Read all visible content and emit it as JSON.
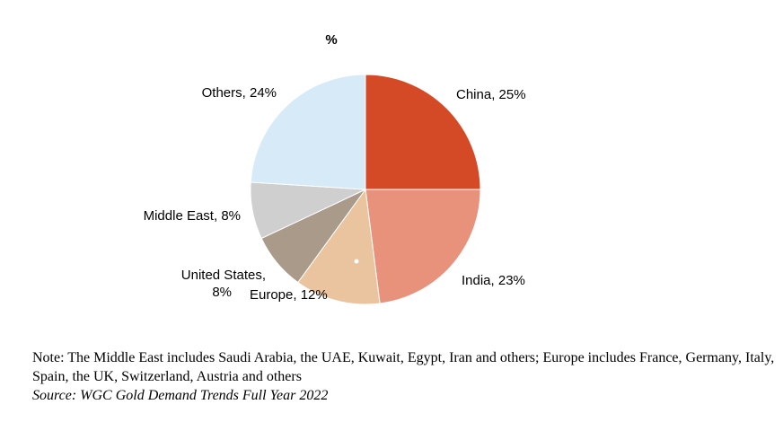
{
  "chart_data": {
    "type": "pie",
    "title": "%",
    "slices": [
      {
        "label": "China",
        "value": 25,
        "color": "#d44a27",
        "text": "China, 25%"
      },
      {
        "label": "India",
        "value": 23,
        "color": "#e8917b",
        "text": "India, 23%"
      },
      {
        "label": "Europe",
        "value": 12,
        "color": "#eac49e",
        "text": "Europe, 12%"
      },
      {
        "label": "United States",
        "value": 8,
        "color": "#a99a8a",
        "text_lines": [
          "United States,",
          "8%"
        ]
      },
      {
        "label": "Middle East",
        "value": 8,
        "color": "#cfcfcf",
        "text": "Middle East, 8%"
      },
      {
        "label": "Others",
        "value": 24,
        "color": "#d6eaf8",
        "text": "Others, 24%"
      }
    ]
  },
  "note": "Note: The Middle East includes Saudi Arabia, the UAE, Kuwait, Egypt, Iran and others; Europe includes France, Germany, Italy, Spain, the UK, Switzerland, Austria and others",
  "source": "Source: WGC Gold Demand Trends Full Year 2022"
}
